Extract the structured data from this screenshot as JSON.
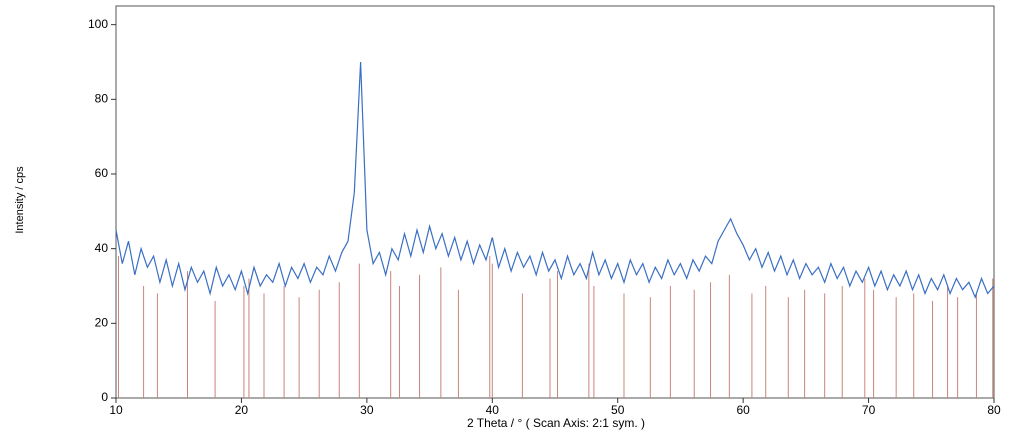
{
  "chart_data": {
    "type": "line",
    "x_label": "2 Theta / °   ( Scan Axis: 2:1 sym. )",
    "y_label": "Intensity / cps",
    "xlim": [
      10,
      80
    ],
    "xticks": [
      10,
      20,
      30,
      40,
      50,
      60,
      70,
      80
    ],
    "ylim": [
      0,
      105
    ],
    "yticks": [
      0,
      20,
      40,
      60,
      80,
      100
    ],
    "x": [
      10,
      10.5,
      11,
      11.5,
      12,
      12.5,
      13,
      13.5,
      14,
      14.5,
      15,
      15.5,
      16,
      16.5,
      17,
      17.5,
      18,
      18.5,
      19,
      19.5,
      20,
      20.5,
      21,
      21.5,
      22,
      22.5,
      23,
      23.5,
      24,
      24.5,
      25,
      25.5,
      26,
      26.5,
      27,
      27.5,
      28,
      28.5,
      29,
      29.5,
      30,
      30.5,
      31,
      31.5,
      32,
      32.5,
      33,
      33.5,
      34,
      34.5,
      35,
      35.5,
      36,
      36.5,
      37,
      37.5,
      38,
      38.5,
      39,
      39.5,
      40,
      40.5,
      41,
      41.5,
      42,
      42.5,
      43,
      43.5,
      44,
      44.5,
      45,
      45.5,
      46,
      46.5,
      47,
      47.5,
      48,
      48.5,
      49,
      49.5,
      50,
      50.5,
      51,
      51.5,
      52,
      52.5,
      53,
      53.5,
      54,
      54.5,
      55,
      55.5,
      56,
      56.5,
      57,
      57.5,
      58,
      58.5,
      59,
      59.5,
      60,
      60.5,
      61,
      61.5,
      62,
      62.5,
      63,
      63.5,
      64,
      64.5,
      65,
      65.5,
      66,
      66.5,
      67,
      67.5,
      68,
      68.5,
      69,
      69.5,
      70,
      70.5,
      71,
      71.5,
      72,
      72.5,
      73,
      73.5,
      74,
      74.5,
      75,
      75.5,
      76,
      76.5,
      77,
      77.5,
      78,
      78.5,
      79,
      79.5,
      80
    ],
    "series": [
      {
        "color": "#3a6fc4",
        "values": [
          45,
          36,
          42,
          33,
          40,
          35,
          38,
          31,
          37,
          30,
          36,
          29,
          35,
          31,
          34,
          28,
          35,
          30,
          33,
          29,
          34,
          28,
          35,
          30,
          33,
          31,
          36,
          30,
          35,
          32,
          36,
          31,
          35,
          33,
          38,
          34,
          39,
          42,
          55,
          90,
          45,
          36,
          39,
          33,
          40,
          37,
          44,
          38,
          45,
          39,
          46,
          40,
          44,
          38,
          43,
          37,
          42,
          36,
          41,
          37,
          43,
          35,
          40,
          34,
          39,
          35,
          38,
          33,
          39,
          34,
          37,
          32,
          38,
          33,
          36,
          32,
          39,
          33,
          37,
          32,
          36,
          31,
          37,
          33,
          36,
          31,
          35,
          32,
          37,
          33,
          36,
          32,
          37,
          34,
          38,
          36,
          42,
          45,
          48,
          44,
          41,
          37,
          40,
          35,
          39,
          34,
          38,
          33,
          37,
          32,
          36,
          33,
          35,
          31,
          36,
          32,
          35,
          30,
          34,
          31,
          35,
          30,
          34,
          29,
          33,
          30,
          34,
          29,
          33,
          28,
          32,
          29,
          33,
          28,
          32,
          29,
          31,
          27,
          32,
          28,
          30
        ]
      }
    ],
    "reference_lines": {
      "color": "#c9857a",
      "x": [
        10.2,
        12.2,
        13.3,
        15.7,
        17.9,
        20.2,
        20.6,
        21.8,
        23.4,
        24.6,
        26.2,
        27.8,
        29.4,
        31.9,
        32.6,
        34.2,
        35.9,
        37.3,
        39.8,
        40.0,
        42.4,
        44.6,
        45.2,
        47.7,
        48.1,
        50.5,
        52.6,
        54.2,
        56.1,
        57.4,
        58.9,
        60.7,
        61.8,
        63.6,
        64.9,
        66.5,
        67.9,
        69.7,
        70.4,
        72.2,
        73.6,
        75.1,
        76.3,
        77.1,
        78.6,
        79.9
      ],
      "values": [
        38,
        30,
        28,
        34,
        26,
        30,
        32,
        28,
        30,
        27,
        29,
        31,
        36,
        34,
        30,
        33,
        35,
        29,
        38,
        36,
        28,
        32,
        34,
        36,
        30,
        28,
        27,
        30,
        29,
        31,
        33,
        28,
        30,
        27,
        29,
        28,
        30,
        32,
        29,
        27,
        28,
        26,
        30,
        27,
        28,
        32
      ]
    }
  }
}
